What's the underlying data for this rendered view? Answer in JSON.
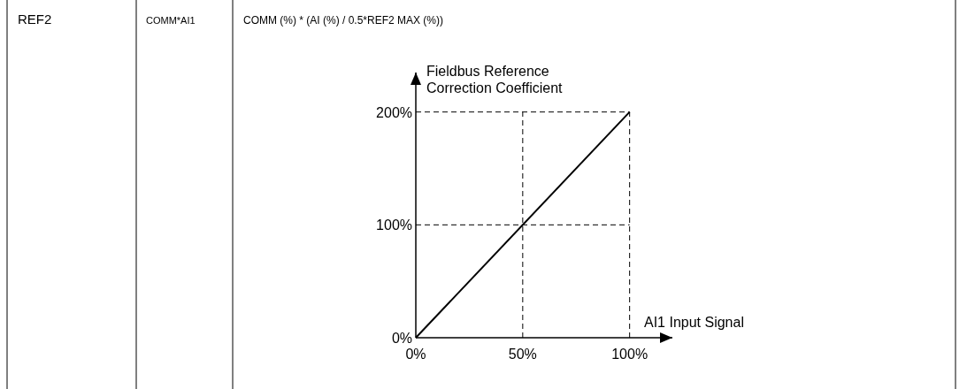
{
  "chart_data": {
    "type": "line",
    "xlabel": "AI1 Input Signal",
    "ylabel": "Fieldbus Reference\nCorrection Coefficient",
    "x": [
      0,
      100
    ],
    "series": [
      {
        "color": "#000000",
        "values": [
          0,
          200
        ]
      }
    ],
    "xlim": [
      0,
      120
    ],
    "ylim": [
      0,
      235
    ],
    "xticks": [
      {
        "value": 0,
        "label": "0%"
      },
      {
        "value": 50,
        "label": "50%"
      },
      {
        "value": 100,
        "label": "100%"
      }
    ],
    "yticks": [
      {
        "value": 0,
        "label": "0%"
      },
      {
        "value": 100,
        "label": "100%"
      },
      {
        "value": 200,
        "label": "200%"
      }
    ],
    "ref_lines": [
      {
        "axis": "y",
        "value": 200,
        "line_style": "dashed",
        "color": "#000000"
      },
      {
        "axis": "y",
        "value": 100,
        "line_style": "dashed",
        "color": "#000000"
      },
      {
        "axis": "x",
        "value": 50,
        "line_style": "dashed",
        "color": "#000000"
      },
      {
        "axis": "x",
        "value": 100,
        "line_style": "dashed",
        "color": "#000000"
      }
    ],
    "annotations": [
      "REF2",
      "COMM*AI1",
      "COMM (%) * (AI (%) / 0.5*REF2 MAX (%))"
    ],
    "grid": false,
    "marker": "none",
    "line_style": "solid"
  }
}
